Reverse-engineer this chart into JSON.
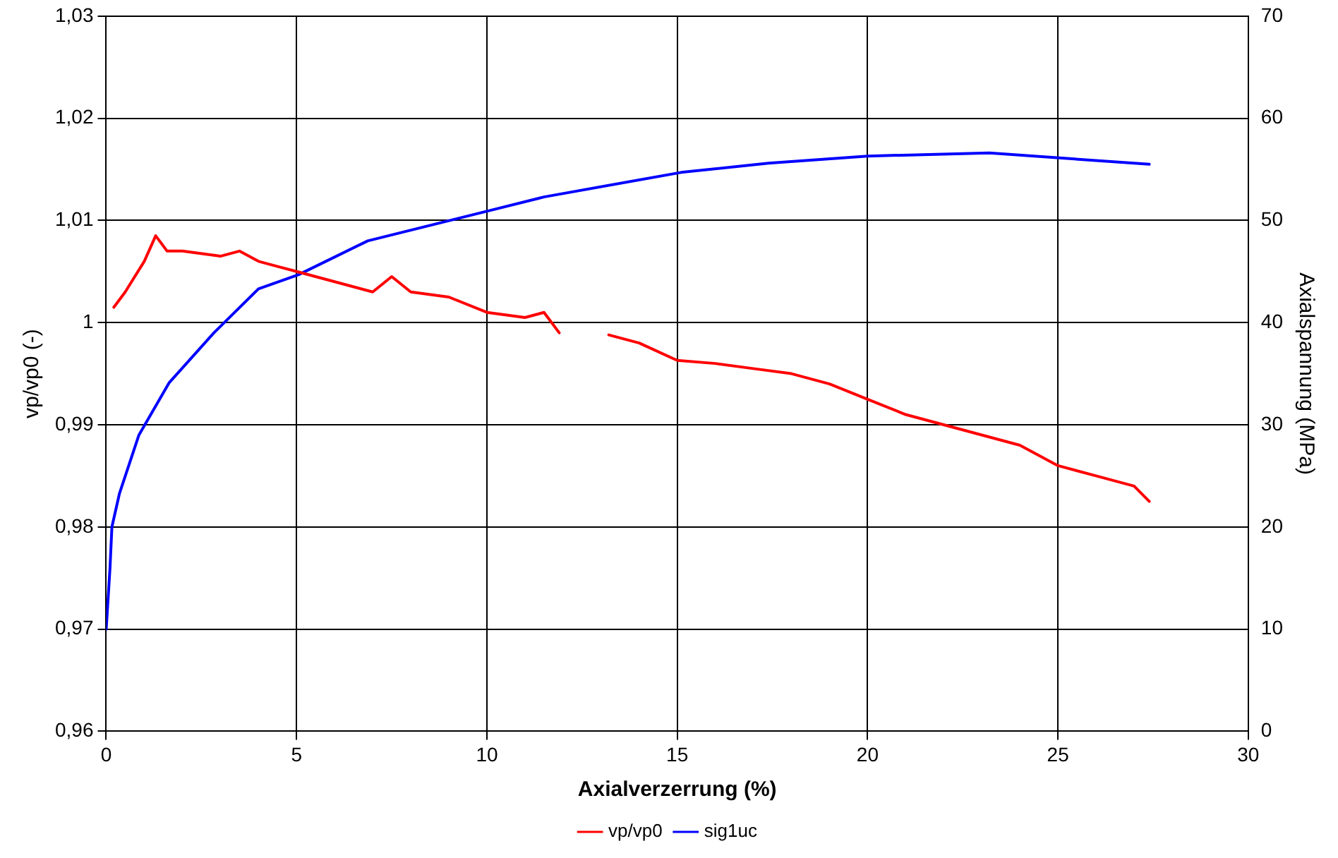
{
  "chart_data": {
    "type": "line",
    "xlabel": "Axialverzerrung (%)",
    "ylabel": "vp/vp0 (-)",
    "y2label": "Axialspannung (MPa)",
    "xlim": [
      0,
      30
    ],
    "xticks": [
      0,
      5,
      10,
      15,
      20,
      25,
      30
    ],
    "ylim": [
      0.96,
      1.03
    ],
    "yticks": [
      {
        "value": 0.96,
        "label": "0,96"
      },
      {
        "value": 0.97,
        "label": "0,97"
      },
      {
        "value": 0.98,
        "label": "0,98"
      },
      {
        "value": 0.99,
        "label": "0,99"
      },
      {
        "value": 1,
        "label": "1"
      },
      {
        "value": 1.01,
        "label": "1,01"
      },
      {
        "value": 1.02,
        "label": "1,02"
      },
      {
        "value": 1.03,
        "label": "1,03"
      }
    ],
    "y2lim": [
      0,
      70
    ],
    "y2ticks": [
      0,
      10,
      20,
      30,
      40,
      50,
      60,
      70
    ],
    "grid": true,
    "legend": "bottom",
    "line_style": "solid",
    "series": [
      {
        "name": "vp/vp0",
        "color": "#ff0000",
        "axis": "y",
        "x": [
          0.2,
          0.5,
          1.0,
          1.3,
          1.6,
          2,
          3,
          3.5,
          4,
          4.5,
          5,
          6,
          7,
          7.5,
          8,
          9,
          10,
          11,
          11.5,
          11.9,
          12.5,
          13.2,
          14,
          15,
          16,
          17,
          18,
          19,
          20,
          21,
          22,
          23,
          24,
          25,
          26,
          27,
          27.4
        ],
        "values": [
          1.0015,
          1.003,
          1.006,
          1.0085,
          1.007,
          1.007,
          1.0065,
          1.007,
          1.006,
          1.0055,
          1.005,
          1.004,
          1.003,
          1.0045,
          1.003,
          1.0025,
          1.001,
          1.0005,
          1.001,
          0.999,
          null,
          0.9988,
          0.998,
          0.9963,
          0.996,
          0.9955,
          0.995,
          0.994,
          0.9925,
          0.991,
          0.99,
          0.989,
          0.988,
          0.986,
          0.985,
          0.984,
          0.9825
        ]
      },
      {
        "name": "sig1uc",
        "color": "#0000ff",
        "axis": "y2",
        "x": [
          0,
          0.05,
          0.1,
          0.15,
          0.35,
          0.86,
          1.65,
          2.83,
          4.0,
          5.06,
          6.87,
          10,
          11.5,
          15.1,
          17.4,
          20,
          23.2,
          25.1,
          27.4
        ],
        "values": [
          10,
          13,
          16,
          20,
          23.3,
          29,
          34.1,
          39,
          43.3,
          44.7,
          48,
          50.9,
          52.3,
          54.7,
          55.6,
          56.3,
          56.6,
          56.1,
          55.5
        ]
      }
    ]
  }
}
